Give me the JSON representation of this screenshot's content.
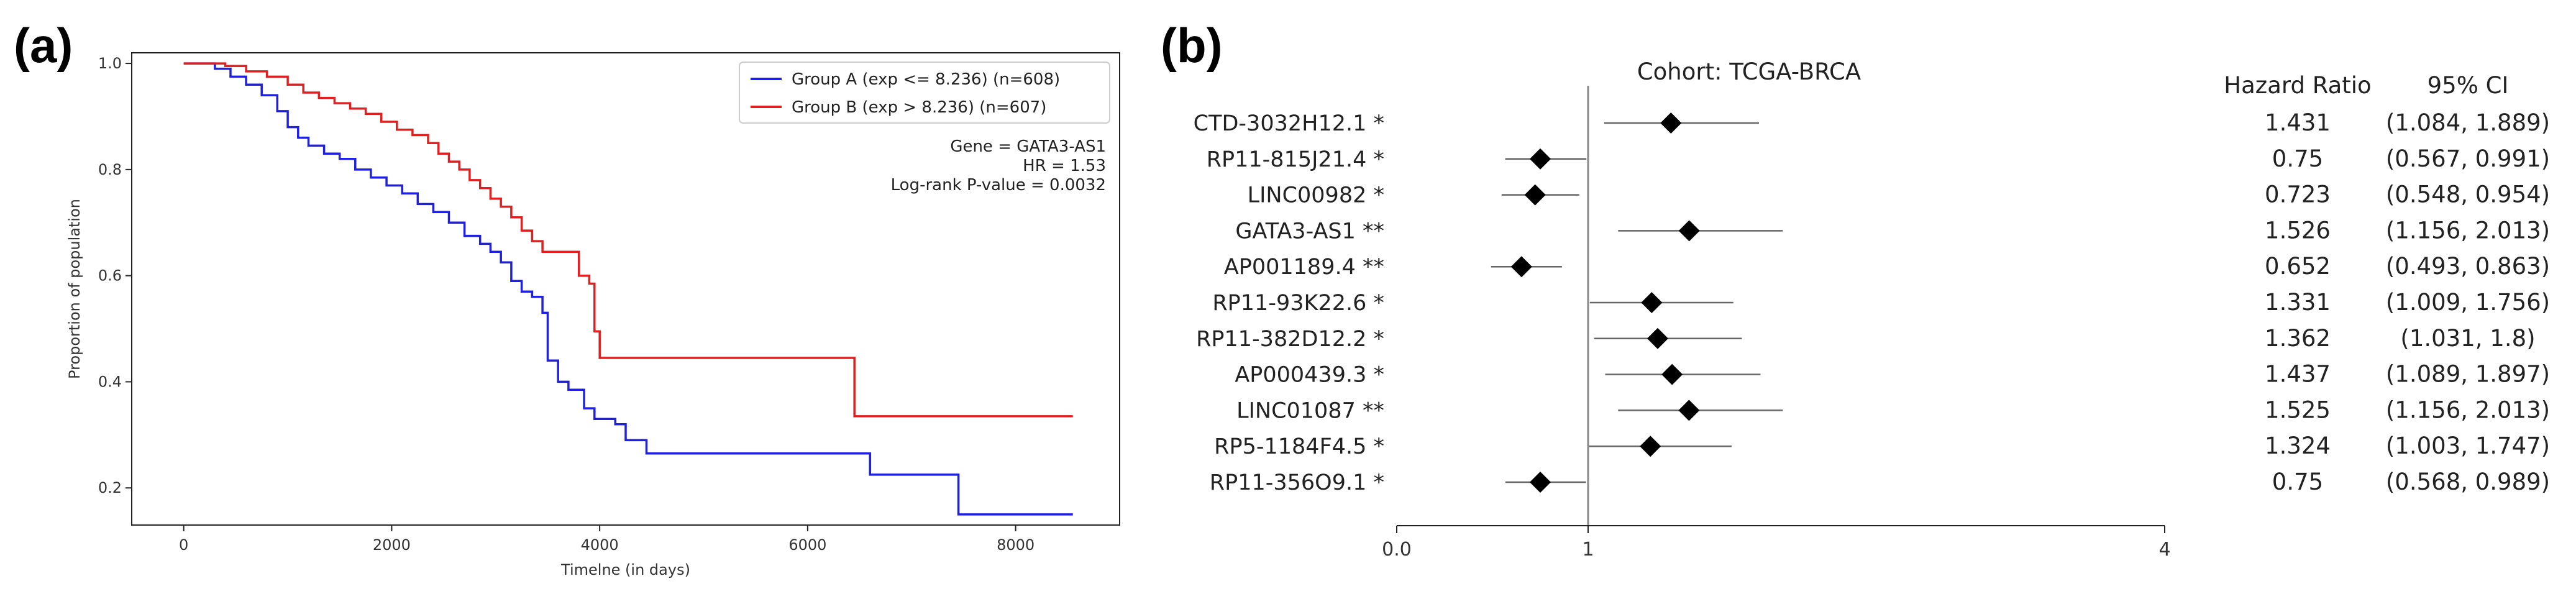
{
  "panels": {
    "a": "(a)",
    "b": "(b)"
  },
  "chart_data": [
    {
      "type": "line",
      "panel": "(a)",
      "xlabel": "Timelne (in days)",
      "ylabel": "Proportion of population",
      "xlim": [
        -500,
        9000
      ],
      "ylim": [
        0.13,
        1.02
      ],
      "x_ticks": [
        0,
        2000,
        4000,
        6000,
        8000
      ],
      "y_ticks": [
        0.2,
        0.4,
        0.6,
        0.8,
        1.0
      ],
      "y_tick_labels": [
        "0.2",
        "0.4",
        "0.6",
        "0.8",
        "1.0"
      ],
      "legend_position": "top-right",
      "grid": false,
      "annotation": [
        "Gene = GATA3-AS1",
        "HR = 1.53",
        "Log-rank P-value = 0.0032"
      ],
      "series": [
        {
          "name": "Group A (exp <= 8.236) (n=608)",
          "color": "#2020e0",
          "points": [
            [
              0,
              1.0
            ],
            [
              150,
              1.0
            ],
            [
              300,
              0.99
            ],
            [
              450,
              0.975
            ],
            [
              600,
              0.96
            ],
            [
              750,
              0.94
            ],
            [
              900,
              0.91
            ],
            [
              1000,
              0.88
            ],
            [
              1100,
              0.86
            ],
            [
              1200,
              0.845
            ],
            [
              1350,
              0.83
            ],
            [
              1500,
              0.82
            ],
            [
              1650,
              0.8
            ],
            [
              1800,
              0.785
            ],
            [
              1950,
              0.77
            ],
            [
              2100,
              0.755
            ],
            [
              2250,
              0.735
            ],
            [
              2400,
              0.72
            ],
            [
              2550,
              0.7
            ],
            [
              2700,
              0.675
            ],
            [
              2850,
              0.66
            ],
            [
              2950,
              0.645
            ],
            [
              3050,
              0.625
            ],
            [
              3150,
              0.59
            ],
            [
              3250,
              0.57
            ],
            [
              3350,
              0.56
            ],
            [
              3450,
              0.53
            ],
            [
              3500,
              0.44
            ],
            [
              3600,
              0.4
            ],
            [
              3700,
              0.385
            ],
            [
              3850,
              0.35
            ],
            [
              3950,
              0.33
            ],
            [
              4150,
              0.32
            ],
            [
              4250,
              0.29
            ],
            [
              4450,
              0.265
            ],
            [
              5500,
              0.265
            ],
            [
              6550,
              0.265
            ],
            [
              6600,
              0.225
            ],
            [
              7400,
              0.225
            ],
            [
              7450,
              0.15
            ],
            [
              8550,
              0.15
            ]
          ]
        },
        {
          "name": "Group B (exp > 8.236) (n=607)",
          "color": "#e02020",
          "points": [
            [
              0,
              1.0
            ],
            [
              250,
              1.0
            ],
            [
              400,
              0.995
            ],
            [
              600,
              0.985
            ],
            [
              800,
              0.975
            ],
            [
              1000,
              0.96
            ],
            [
              1150,
              0.945
            ],
            [
              1300,
              0.935
            ],
            [
              1450,
              0.925
            ],
            [
              1600,
              0.915
            ],
            [
              1750,
              0.905
            ],
            [
              1900,
              0.89
            ],
            [
              2050,
              0.875
            ],
            [
              2200,
              0.865
            ],
            [
              2350,
              0.85
            ],
            [
              2450,
              0.83
            ],
            [
              2550,
              0.815
            ],
            [
              2650,
              0.8
            ],
            [
              2750,
              0.78
            ],
            [
              2850,
              0.765
            ],
            [
              2950,
              0.745
            ],
            [
              3050,
              0.73
            ],
            [
              3150,
              0.71
            ],
            [
              3250,
              0.685
            ],
            [
              3350,
              0.665
            ],
            [
              3450,
              0.645
            ],
            [
              3700,
              0.645
            ],
            [
              3800,
              0.6
            ],
            [
              3900,
              0.585
            ],
            [
              3950,
              0.495
            ],
            [
              4000,
              0.445
            ],
            [
              6400,
              0.445
            ],
            [
              6450,
              0.335
            ],
            [
              8550,
              0.335
            ]
          ]
        }
      ]
    },
    {
      "type": "forest",
      "panel": "(b)",
      "title": "Cohort: TCGA-BRCA",
      "x_ticks": [
        0.0,
        1,
        4
      ],
      "x_tick_labels": [
        "0.0",
        "1",
        "4"
      ],
      "reference_line": 1,
      "column_headers": [
        "Hazard Ratio",
        "95% CI"
      ],
      "rows": [
        {
          "label": "CTD-3032H12.1",
          "sig": "*",
          "hr": 1.431,
          "lo": 1.084,
          "hi": 1.889,
          "hr_text": "1.431",
          "ci_text": "(1.084, 1.889)"
        },
        {
          "label": "RP11-815J21.4",
          "sig": "*",
          "hr": 0.75,
          "lo": 0.567,
          "hi": 0.991,
          "hr_text": "0.75",
          "ci_text": "(0.567, 0.991)"
        },
        {
          "label": "LINC00982",
          "sig": "*",
          "hr": 0.723,
          "lo": 0.548,
          "hi": 0.954,
          "hr_text": "0.723",
          "ci_text": "(0.548, 0.954)"
        },
        {
          "label": "GATA3-AS1",
          "sig": "**",
          "hr": 1.526,
          "lo": 1.156,
          "hi": 2.013,
          "hr_text": "1.526",
          "ci_text": "(1.156, 2.013)"
        },
        {
          "label": "AP001189.4",
          "sig": "**",
          "hr": 0.652,
          "lo": 0.493,
          "hi": 0.863,
          "hr_text": "0.652",
          "ci_text": "(0.493, 0.863)"
        },
        {
          "label": "RP11-93K22.6",
          "sig": "*",
          "hr": 1.331,
          "lo": 1.009,
          "hi": 1.756,
          "hr_text": "1.331",
          "ci_text": "(1.009, 1.756)"
        },
        {
          "label": "RP11-382D12.2",
          "sig": "*",
          "hr": 1.362,
          "lo": 1.031,
          "hi": 1.8,
          "hr_text": "1.362",
          "ci_text": "(1.031, 1.8)"
        },
        {
          "label": "AP000439.3",
          "sig": "*",
          "hr": 1.437,
          "lo": 1.089,
          "hi": 1.897,
          "hr_text": "1.437",
          "ci_text": "(1.089, 1.897)"
        },
        {
          "label": "LINC01087",
          "sig": "**",
          "hr": 1.525,
          "lo": 1.156,
          "hi": 2.013,
          "hr_text": "1.525",
          "ci_text": "(1.156, 2.013)"
        },
        {
          "label": "RP5-1184F4.5",
          "sig": "*",
          "hr": 1.324,
          "lo": 1.003,
          "hi": 1.747,
          "hr_text": "1.324",
          "ci_text": "(1.003, 1.747)"
        },
        {
          "label": "RP11-356O9.1",
          "sig": "*",
          "hr": 0.75,
          "lo": 0.568,
          "hi": 0.989,
          "hr_text": "0.75",
          "ci_text": "(0.568, 0.989)"
        }
      ]
    }
  ]
}
